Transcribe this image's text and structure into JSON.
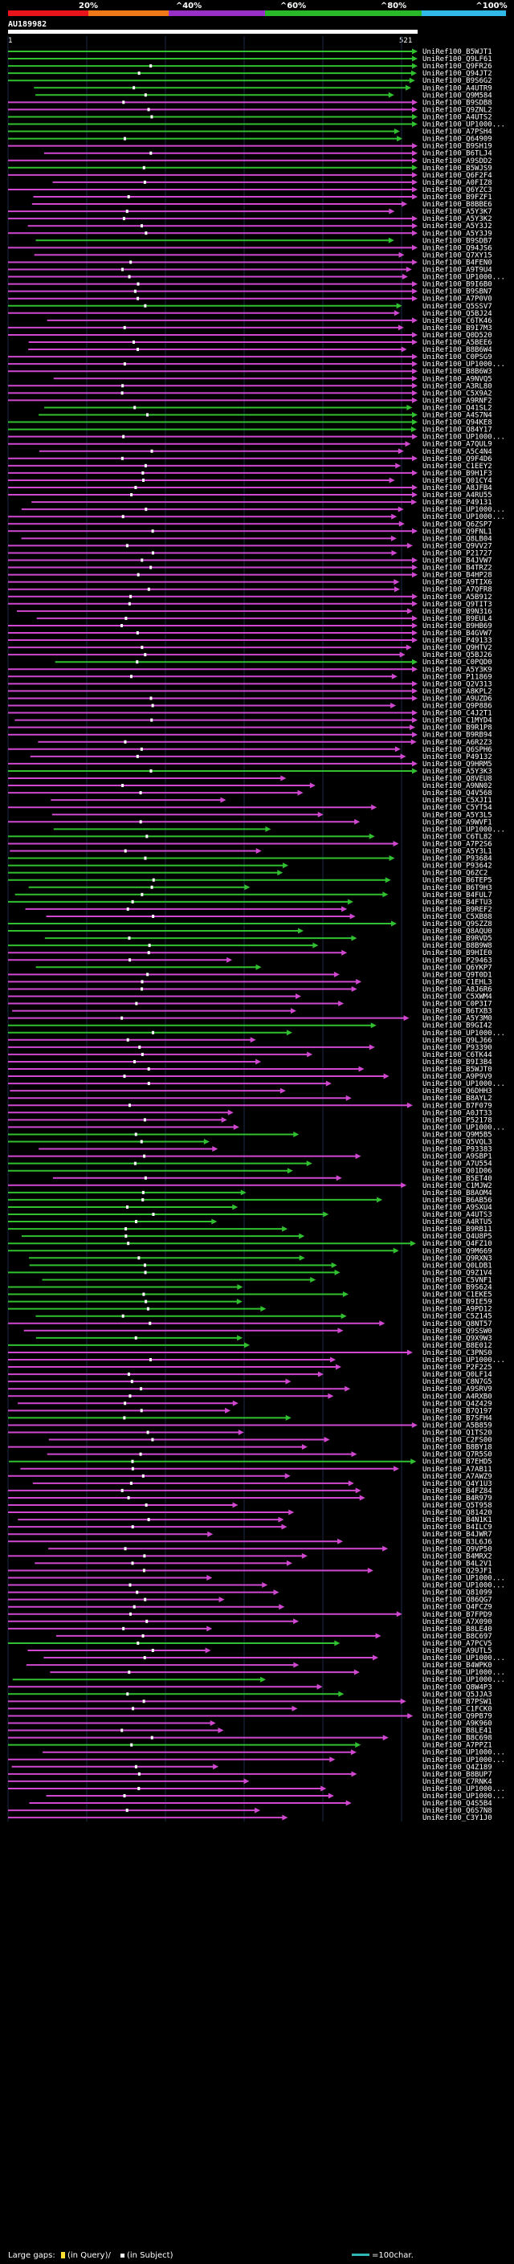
{
  "query": {
    "id": "AU189982",
    "start": "1",
    "end": "521"
  },
  "identity_scale": {
    "labels": [
      "20%",
      "^40%",
      "^60%",
      "^80%",
      "^100%"
    ],
    "colors": [
      "#e8141c",
      "#f07818",
      "#9830c8",
      "#28b828",
      "#30b8e8"
    ]
  },
  "colors": {
    "green": "#30c030",
    "magenta": "#d048d0",
    "grid": "#1a2a48",
    "ruler": "#ffffff"
  },
  "hits": [
    {
      "id": "UniRef100_B5WJT1",
      "color": "green"
    },
    {
      "id": "UniRef100_Q9LF61",
      "color": "green"
    },
    {
      "id": "UniRef100_Q9FR26",
      "color": "green"
    },
    {
      "id": "UniRef100_Q94JT2",
      "color": "green"
    },
    {
      "id": "UniRef100_B9S6G2",
      "color": "green"
    },
    {
      "id": "UniRef100_A4UTR9",
      "color": "green"
    },
    {
      "id": "UniRef100_Q9M584",
      "color": "green"
    },
    {
      "id": "UniRef100_B9SDB8",
      "color": "magenta"
    },
    {
      "id": "UniRef100_Q9ZNL2",
      "color": "magenta"
    },
    {
      "id": "UniRef100_A4UTS2",
      "color": "green"
    },
    {
      "id": "UniRef100_UP1000...",
      "color": "green"
    },
    {
      "id": "UniRef100_A7PSH4",
      "color": "green"
    },
    {
      "id": "UniRef100_Q64909",
      "color": "green"
    },
    {
      "id": "UniRef100_B9SH19",
      "color": "magenta"
    },
    {
      "id": "UniRef100_B6TLJ4",
      "color": "magenta"
    },
    {
      "id": "UniRef100_A9SDD2",
      "color": "magenta"
    },
    {
      "id": "UniRef100_B5WJS9",
      "color": "green"
    },
    {
      "id": "UniRef100_Q6F2F4",
      "color": "magenta"
    },
    {
      "id": "UniRef100_A0FIZ8",
      "color": "magenta"
    },
    {
      "id": "UniRef100_Q6YZC3",
      "color": "magenta"
    },
    {
      "id": "UniRef100_B9FZF1",
      "color": "magenta"
    },
    {
      "id": "UniRef100_B8BBE6",
      "color": "magenta"
    },
    {
      "id": "UniRef100_A5Y3K7",
      "color": "magenta"
    },
    {
      "id": "UniRef100_A5Y3K2",
      "color": "magenta"
    },
    {
      "id": "UniRef100_A5Y3J2",
      "color": "magenta"
    },
    {
      "id": "UniRef100_A5Y3J9",
      "color": "magenta"
    },
    {
      "id": "UniRef100_B9SDB7",
      "color": "green"
    },
    {
      "id": "UniRef100_Q94JS6",
      "color": "magenta"
    },
    {
      "id": "UniRef100_Q7XY15",
      "color": "magenta"
    },
    {
      "id": "UniRef100_B4FEN0",
      "color": "magenta"
    },
    {
      "id": "UniRef100_A9T9U4",
      "color": "magenta"
    },
    {
      "id": "UniRef100_UP1000...",
      "color": "magenta"
    },
    {
      "id": "UniRef100_B9I6B0",
      "color": "magenta"
    },
    {
      "id": "UniRef100_B9SBN7",
      "color": "magenta"
    },
    {
      "id": "UniRef100_A7P0V0",
      "color": "magenta"
    },
    {
      "id": "UniRef100_Q5SSV7",
      "color": "green"
    },
    {
      "id": "UniRef100_Q5BJ24",
      "color": "magenta"
    },
    {
      "id": "UniRef100_C6TK46",
      "color": "magenta"
    },
    {
      "id": "UniRef100_B9I7M3",
      "color": "magenta"
    },
    {
      "id": "UniRef100_Q0D520",
      "color": "magenta"
    },
    {
      "id": "UniRef100_A5BEE6",
      "color": "magenta"
    },
    {
      "id": "UniRef100_B8B6W4",
      "color": "magenta"
    },
    {
      "id": "UniRef100_C0PSG9",
      "color": "magenta"
    },
    {
      "id": "UniRef100_UP1000...",
      "color": "magenta"
    },
    {
      "id": "UniRef100_B8B6W3",
      "color": "magenta"
    },
    {
      "id": "UniRef100_A9NVQ5",
      "color": "magenta"
    },
    {
      "id": "UniRef100_A3RL80",
      "color": "magenta"
    },
    {
      "id": "UniRef100_C5X9A2",
      "color": "magenta"
    },
    {
      "id": "UniRef100_A9RNF2",
      "color": "magenta"
    },
    {
      "id": "UniRef100_Q41SL2",
      "color": "green"
    },
    {
      "id": "UniRef100_A4S7N4",
      "color": "green"
    },
    {
      "id": "UniRef100_Q94KE8",
      "color": "green"
    },
    {
      "id": "UniRef100_Q84Y17",
      "color": "green"
    },
    {
      "id": "UniRef100_UP1000...",
      "color": "magenta"
    },
    {
      "id": "UniRef100_A7QUL9",
      "color": "magenta"
    },
    {
      "id": "UniRef100_A5C4N4",
      "color": "magenta"
    },
    {
      "id": "UniRef100_Q9F4D6",
      "color": "magenta"
    },
    {
      "id": "UniRef100_C1EEY2",
      "color": "magenta"
    },
    {
      "id": "UniRef100_B9H1F3",
      "color": "magenta"
    },
    {
      "id": "UniRef100_Q01CY4",
      "color": "magenta"
    },
    {
      "id": "UniRef100_A8JFB4",
      "color": "magenta"
    },
    {
      "id": "UniRef100_A4RU55",
      "color": "magenta"
    },
    {
      "id": "UniRef100_P49131",
      "color": "magenta"
    },
    {
      "id": "UniRef100_UP1000...",
      "color": "magenta"
    },
    {
      "id": "UniRef100_UP1000...",
      "color": "magenta"
    },
    {
      "id": "UniRef100_Q6ZSP7",
      "color": "magenta"
    },
    {
      "id": "UniRef100_Q9FNL1",
      "color": "magenta"
    },
    {
      "id": "UniRef100_Q8LB04",
      "color": "magenta"
    },
    {
      "id": "UniRef100_Q9VV27",
      "color": "magenta"
    },
    {
      "id": "UniRef100_P21727",
      "color": "magenta"
    },
    {
      "id": "UniRef100_B4JVW7",
      "color": "magenta"
    },
    {
      "id": "UniRef100_B4TRZ2",
      "color": "magenta"
    },
    {
      "id": "UniRef100_B4HP28",
      "color": "magenta"
    },
    {
      "id": "UniRef100_A9TIX6",
      "color": "magenta"
    },
    {
      "id": "UniRef100_A7QFR8",
      "color": "magenta"
    },
    {
      "id": "UniRef100_A5B912",
      "color": "magenta"
    },
    {
      "id": "UniRef100_Q9TIT3",
      "color": "magenta"
    },
    {
      "id": "UniRef100_B9N316",
      "color": "magenta"
    },
    {
      "id": "UniRef100_B9EUL4",
      "color": "magenta"
    },
    {
      "id": "UniRef100_B9HB69",
      "color": "magenta"
    },
    {
      "id": "UniRef100_B4GVW7",
      "color": "magenta"
    },
    {
      "id": "UniRef100_P49133",
      "color": "magenta"
    },
    {
      "id": "UniRef100_Q9HTV2",
      "color": "magenta"
    },
    {
      "id": "UniRef100_Q5BJ26",
      "color": "magenta"
    },
    {
      "id": "UniRef100_C0PQD0",
      "color": "green"
    },
    {
      "id": "UniRef100_A5Y3K9",
      "color": "magenta"
    },
    {
      "id": "UniRef100_P11869",
      "color": "magenta"
    },
    {
      "id": "UniRef100_Q2V313",
      "color": "magenta"
    },
    {
      "id": "UniRef100_A8KPL2",
      "color": "magenta"
    },
    {
      "id": "UniRef100_A9UZD6",
      "color": "magenta"
    },
    {
      "id": "UniRef100_Q9P886",
      "color": "magenta"
    },
    {
      "id": "UniRef100_C4J2T1",
      "color": "magenta"
    },
    {
      "id": "UniRef100_C1MYD4",
      "color": "magenta"
    },
    {
      "id": "UniRef100_B9R1P8",
      "color": "magenta"
    },
    {
      "id": "UniRef100_B9RB94",
      "color": "magenta"
    },
    {
      "id": "UniRef100_A6R2Z3",
      "color": "magenta"
    },
    {
      "id": "UniRef100_Q6SPH6",
      "color": "magenta"
    },
    {
      "id": "UniRef100_P49132",
      "color": "magenta"
    },
    {
      "id": "UniRef100_Q9HRM5",
      "color": "magenta"
    },
    {
      "id": "UniRef100_A5Y3K3",
      "color": "green"
    },
    {
      "id": "UniRef100_Q8VEU8",
      "color": "magenta"
    },
    {
      "id": "UniRef100_A9NN02",
      "color": "magenta"
    },
    {
      "id": "UniRef100_Q4V568",
      "color": "magenta"
    },
    {
      "id": "UniRef100_C5XJI1",
      "color": "magenta"
    },
    {
      "id": "UniRef100_C5YT54",
      "color": "magenta"
    },
    {
      "id": "UniRef100_A5Y3L5",
      "color": "magenta"
    },
    {
      "id": "UniRef100_A9WVF1",
      "color": "magenta"
    },
    {
      "id": "UniRef100_UP1000...",
      "color": "green"
    },
    {
      "id": "UniRef100_C6TL82",
      "color": "green"
    },
    {
      "id": "UniRef100_A7P2S6",
      "color": "magenta"
    },
    {
      "id": "UniRef100_A5Y3L1",
      "color": "magenta"
    },
    {
      "id": "UniRef100_P93684",
      "color": "green"
    },
    {
      "id": "UniRef100_P93642",
      "color": "green"
    },
    {
      "id": "UniRef100_Q6ZC2",
      "color": "green"
    },
    {
      "id": "UniRef100_B6TEP5",
      "color": "green"
    },
    {
      "id": "UniRef100_B6T9H3",
      "color": "green"
    },
    {
      "id": "UniRef100_B4FUL7",
      "color": "green"
    },
    {
      "id": "UniRef100_B4FTU3",
      "color": "green"
    },
    {
      "id": "UniRef100_B9REF2",
      "color": "magenta"
    },
    {
      "id": "UniRef100_C5XB88",
      "color": "magenta"
    },
    {
      "id": "UniRef100_Q9SZZ8",
      "color": "green"
    },
    {
      "id": "UniRef100_Q8AQU0",
      "color": "green"
    },
    {
      "id": "UniRef100_B9RVD5",
      "color": "green"
    },
    {
      "id": "UniRef100_B8B9W8",
      "color": "green"
    },
    {
      "id": "UniRef100_B9HIE0",
      "color": "magenta"
    },
    {
      "id": "UniRef100_P29463",
      "color": "magenta"
    },
    {
      "id": "UniRef100_Q6YKP7",
      "color": "green"
    },
    {
      "id": "UniRef100_Q9T0D1",
      "color": "magenta"
    },
    {
      "id": "UniRef100_C1EHL3",
      "color": "magenta"
    },
    {
      "id": "UniRef100_A8J6R6",
      "color": "magenta"
    },
    {
      "id": "UniRef100_C5XWM4",
      "color": "magenta"
    },
    {
      "id": "UniRef100_C0P3I7",
      "color": "magenta"
    },
    {
      "id": "UniRef100_B6TXB3",
      "color": "magenta"
    },
    {
      "id": "UniRef100_A5Y3M0",
      "color": "magenta"
    },
    {
      "id": "UniRef100_B9GI42",
      "color": "green"
    },
    {
      "id": "UniRef100_UP1000...",
      "color": "green"
    },
    {
      "id": "UniRef100_Q9LJ66",
      "color": "magenta"
    },
    {
      "id": "UniRef100_P93390",
      "color": "magenta"
    },
    {
      "id": "UniRef100_C6TK44",
      "color": "magenta"
    },
    {
      "id": "UniRef100_B9I3B4",
      "color": "magenta"
    },
    {
      "id": "UniRef100_B5WJT0",
      "color": "magenta"
    },
    {
      "id": "UniRef100_A9P9V9",
      "color": "magenta"
    },
    {
      "id": "UniRef100_UP1000...",
      "color": "magenta"
    },
    {
      "id": "UniRef100_Q6DHH3",
      "color": "magenta"
    },
    {
      "id": "UniRef100_B8AYL2",
      "color": "magenta"
    },
    {
      "id": "UniRef100_B7F079",
      "color": "magenta"
    },
    {
      "id": "UniRef100_A0JT33",
      "color": "magenta"
    },
    {
      "id": "UniRef100_P52178",
      "color": "magenta"
    },
    {
      "id": "UniRef100_UP1000...",
      "color": "magenta"
    },
    {
      "id": "UniRef100_Q9M5B5",
      "color": "green"
    },
    {
      "id": "UniRef100_Q5VQL3",
      "color": "green"
    },
    {
      "id": "UniRef100_P93383",
      "color": "magenta"
    },
    {
      "id": "UniRef100_A9SBP1",
      "color": "magenta"
    },
    {
      "id": "UniRef100_A7U554",
      "color": "green"
    },
    {
      "id": "UniRef100_Q01D06",
      "color": "green"
    },
    {
      "id": "UniRef100_B5ET40",
      "color": "magenta"
    },
    {
      "id": "UniRef100_C1MJW2",
      "color": "magenta"
    },
    {
      "id": "UniRef100_B8AOM4",
      "color": "green"
    },
    {
      "id": "UniRef100_B6AB56",
      "color": "green"
    },
    {
      "id": "UniRef100_A9SXU4",
      "color": "green"
    },
    {
      "id": "UniRef100_A4UTS3",
      "color": "green"
    },
    {
      "id": "UniRef100_A4RTU5",
      "color": "green"
    },
    {
      "id": "UniRef100_B9RB11",
      "color": "green"
    },
    {
      "id": "UniRef100_Q4U8P5",
      "color": "green"
    },
    {
      "id": "UniRef100_Q4FZ10",
      "color": "green"
    },
    {
      "id": "UniRef100_Q9M669",
      "color": "green"
    },
    {
      "id": "UniRef100_Q9RXN3",
      "color": "green"
    },
    {
      "id": "UniRef100_Q0LDB1",
      "color": "green"
    },
    {
      "id": "UniRef100_Q9Z1V4",
      "color": "green"
    },
    {
      "id": "UniRef100_C5VNF1",
      "color": "green"
    },
    {
      "id": "UniRef100_B9S624",
      "color": "green"
    },
    {
      "id": "UniRef100_C1EKE5",
      "color": "green"
    },
    {
      "id": "UniRef100_B9IE59",
      "color": "green"
    },
    {
      "id": "UniRef100_A9PD12",
      "color": "green"
    },
    {
      "id": "UniRef100_C5Z145",
      "color": "green"
    },
    {
      "id": "UniRef100_Q8NT57",
      "color": "magenta"
    },
    {
      "id": "UniRef100_Q9SSW0",
      "color": "magenta"
    },
    {
      "id": "UniRef100_Q9X9W3",
      "color": "green"
    },
    {
      "id": "UniRef100_B8E012",
      "color": "green"
    },
    {
      "id": "UniRef100_C3PNS0",
      "color": "magenta"
    },
    {
      "id": "UniRef100_UP1000...",
      "color": "magenta"
    },
    {
      "id": "UniRef100_P2F225",
      "color": "magenta"
    },
    {
      "id": "UniRef100_Q0LF14",
      "color": "magenta"
    },
    {
      "id": "UniRef100_C8N7G5",
      "color": "magenta"
    },
    {
      "id": "UniRef100_A9SRV9",
      "color": "magenta"
    },
    {
      "id": "UniRef100_A4RXB0",
      "color": "magenta"
    },
    {
      "id": "UniRef100_Q4Z429",
      "color": "magenta"
    },
    {
      "id": "UniRef100_B7Q197",
      "color": "magenta"
    },
    {
      "id": "UniRef100_B7SFH4",
      "color": "green"
    },
    {
      "id": "UniRef100_A5B859",
      "color": "magenta"
    },
    {
      "id": "UniRef100_Q1TS20",
      "color": "magenta"
    },
    {
      "id": "UniRef100_C2FS00",
      "color": "magenta"
    },
    {
      "id": "UniRef100_B8BY18",
      "color": "magenta"
    },
    {
      "id": "UniRef100_Q7R5S0",
      "color": "magenta"
    },
    {
      "id": "UniRef100_B7EHD5",
      "color": "green"
    },
    {
      "id": "UniRef100_A7AB11",
      "color": "magenta"
    },
    {
      "id": "UniRef100_A7AWZ9",
      "color": "magenta"
    },
    {
      "id": "UniRef100_Q4Y1U3",
      "color": "magenta"
    },
    {
      "id": "UniRef100_B4FZ84",
      "color": "magenta"
    },
    {
      "id": "UniRef100_B4R979",
      "color": "magenta"
    },
    {
      "id": "UniRef100_Q5T958",
      "color": "magenta"
    },
    {
      "id": "UniRef100_Q81420",
      "color": "magenta"
    },
    {
      "id": "UniRef100_B4N1K1",
      "color": "magenta"
    },
    {
      "id": "UniRef100_B4ILC9",
      "color": "magenta"
    },
    {
      "id": "UniRef100_B4JWR7",
      "color": "magenta"
    },
    {
      "id": "UniRef100_B3L6J6",
      "color": "magenta"
    },
    {
      "id": "UniRef100_Q9VP50",
      "color": "magenta"
    },
    {
      "id": "UniRef100_B4MRX2",
      "color": "magenta"
    },
    {
      "id": "UniRef100_B4L2V1",
      "color": "magenta"
    },
    {
      "id": "UniRef100_Q29JF1",
      "color": "magenta"
    },
    {
      "id": "UniRef100_UP1000...",
      "color": "magenta"
    },
    {
      "id": "UniRef100_UP1000...",
      "color": "magenta"
    },
    {
      "id": "UniRef100_Q81099",
      "color": "magenta"
    },
    {
      "id": "UniRef100_Q86QG7",
      "color": "magenta"
    },
    {
      "id": "UniRef100_Q4FCZ9",
      "color": "magenta"
    },
    {
      "id": "UniRef100_B7FPD9",
      "color": "magenta"
    },
    {
      "id": "UniRef100_A7X090",
      "color": "magenta"
    },
    {
      "id": "UniRef100_B8LE40",
      "color": "magenta"
    },
    {
      "id": "UniRef100_B8C697",
      "color": "magenta"
    },
    {
      "id": "UniRef100_A7PCV5",
      "color": "green"
    },
    {
      "id": "UniRef100_A9UTL5",
      "color": "magenta"
    },
    {
      "id": "UniRef100_UP1000...",
      "color": "magenta"
    },
    {
      "id": "UniRef100_B4WPK0",
      "color": "magenta"
    },
    {
      "id": "UniRef100_UP1000...",
      "color": "magenta"
    },
    {
      "id": "UniRef100_UP1000...",
      "color": "green"
    },
    {
      "id": "UniRef100_Q8W4P3",
      "color": "magenta"
    },
    {
      "id": "UniRef100_Q5JJA3",
      "color": "green"
    },
    {
      "id": "UniRef100_B7PSW1",
      "color": "magenta"
    },
    {
      "id": "UniRef100_C1FCK0",
      "color": "magenta"
    },
    {
      "id": "UniRef100_Q9PB79",
      "color": "magenta"
    },
    {
      "id": "UniRef100_A9K960",
      "color": "magenta"
    },
    {
      "id": "UniRef100_B8LE41",
      "color": "magenta"
    },
    {
      "id": "UniRef100_B8C698",
      "color": "magenta"
    },
    {
      "id": "UniRef100_A7PPZ1",
      "color": "green"
    },
    {
      "id": "UniRef100_UP1000...",
      "color": "magenta"
    },
    {
      "id": "UniRef100_UP1000...",
      "color": "magenta"
    },
    {
      "id": "UniRef100_Q4Z189",
      "color": "magenta"
    },
    {
      "id": "UniRef100_B8BUP7",
      "color": "magenta"
    },
    {
      "id": "UniRef100_C7RNK4",
      "color": "magenta"
    },
    {
      "id": "UniRef100_UP1000...",
      "color": "magenta"
    },
    {
      "id": "UniRef100_UP1000...",
      "color": "magenta"
    },
    {
      "id": "UniRef100_Q4S5B4",
      "color": "magenta"
    },
    {
      "id": "UniRef100_Q6S7N8",
      "color": "magenta"
    },
    {
      "id": "UniRef100_C3Y1J0",
      "color": "magenta"
    }
  ],
  "legend": {
    "prefix": "Large gaps:",
    "in_query": "(in Query)/",
    "in_subject": "(in Subject)",
    "scale_label": "=100char."
  }
}
